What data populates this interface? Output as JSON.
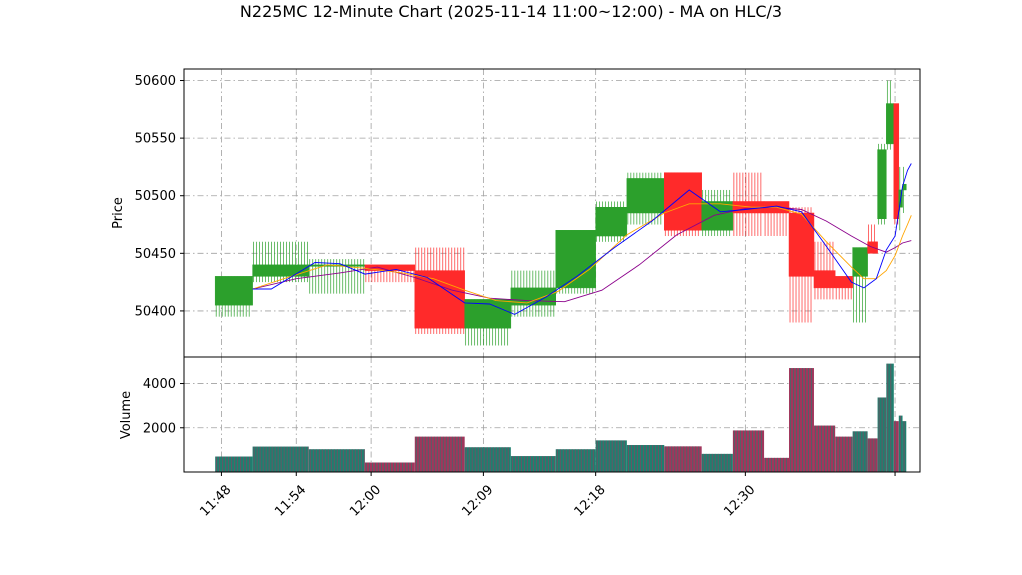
{
  "chart_data": {
    "type": "candlestick",
    "title": "N225MC 12-Minute Chart (2025-11-14 11:00~12:00) - MA on HLC/3",
    "price_panel": {
      "ylabel": "Price",
      "ylim": [
        50360,
        50610
      ],
      "yticks": [
        50400,
        50450,
        50500,
        50550,
        50600
      ],
      "grid": true
    },
    "volume_panel": {
      "ylabel": "Volume",
      "ylim": [
        0,
        5200
      ],
      "yticks": [
        2000,
        4000
      ],
      "grid": true
    },
    "x_ticks": [
      {
        "x": 0.0,
        "label": "11:48"
      },
      {
        "x": 6.0,
        "label": "11:54"
      },
      {
        "x": 12.0,
        "label": "12:00"
      },
      {
        "x": 21.0,
        "label": "12:09"
      },
      {
        "x": 30.0,
        "label": "12:18"
      },
      {
        "x": 42.0,
        "label": "12:30"
      },
      {
        "x": 54.0,
        "label": ""
      }
    ],
    "xlim": [
      -3.0,
      56.0
    ],
    "colors": {
      "up": "#2ca02c",
      "down": "#ff2a2a",
      "ma_short": "#0000ff",
      "ma_mid": "#ffa500",
      "ma_long": "#8b008b",
      "vol_up": "#1f7f6f",
      "vol_down": "#a0365c"
    },
    "candles": [
      {
        "x0": -0.5,
        "x1": 2.5,
        "open": 50405,
        "high": 50430,
        "low": 50395,
        "close": 50430,
        "volume": 700
      },
      {
        "x0": 2.5,
        "x1": 7.0,
        "open": 50430,
        "high": 50460,
        "low": 50425,
        "close": 50440,
        "volume": 1150
      },
      {
        "x0": 7.0,
        "x1": 11.5,
        "open": 50440,
        "high": 50445,
        "low": 50415,
        "close": 50440,
        "volume": 1030
      },
      {
        "x0": 11.5,
        "x1": 15.5,
        "open": 50440,
        "high": 50440,
        "low": 50425,
        "close": 50435,
        "volume": 430
      },
      {
        "x0": 15.5,
        "x1": 19.5,
        "open": 50435,
        "high": 50455,
        "low": 50380,
        "close": 50385,
        "volume": 1600
      },
      {
        "x0": 19.5,
        "x1": 23.2,
        "open": 50385,
        "high": 50410,
        "low": 50370,
        "close": 50410,
        "volume": 1120
      },
      {
        "x0": 23.2,
        "x1": 26.8,
        "open": 50405,
        "high": 50435,
        "low": 50395,
        "close": 50420,
        "volume": 720
      },
      {
        "x0": 26.8,
        "x1": 30.0,
        "open": 50420,
        "high": 50470,
        "low": 50415,
        "close": 50470,
        "volume": 1030
      },
      {
        "x0": 30.0,
        "x1": 32.5,
        "open": 50465,
        "high": 50495,
        "low": 50460,
        "close": 50490,
        "volume": 1430
      },
      {
        "x0": 32.5,
        "x1": 35.5,
        "open": 50485,
        "high": 50520,
        "low": 50475,
        "close": 50515,
        "volume": 1220
      },
      {
        "x0": 35.5,
        "x1": 38.5,
        "open": 50520,
        "high": 50520,
        "low": 50465,
        "close": 50470,
        "volume": 1160
      },
      {
        "x0": 38.5,
        "x1": 41.0,
        "open": 50470,
        "high": 50505,
        "low": 50465,
        "close": 50495,
        "volume": 820
      },
      {
        "x0": 41.0,
        "x1": 43.5,
        "open": 50495,
        "high": 50520,
        "low": 50465,
        "close": 50485,
        "volume": 1880
      },
      {
        "x0": 43.5,
        "x1": 45.5,
        "open": 50495,
        "high": 50495,
        "low": 50465,
        "close": 50485,
        "volume": 640
      },
      {
        "x0": 45.5,
        "x1": 47.5,
        "open": 50485,
        "high": 50490,
        "low": 50390,
        "close": 50430,
        "volume": 4700
      },
      {
        "x0": 47.5,
        "x1": 49.2,
        "open": 50435,
        "high": 50460,
        "low": 50410,
        "close": 50420,
        "volume": 2100
      },
      {
        "x0": 49.2,
        "x1": 50.6,
        "open": 50430,
        "high": 50430,
        "low": 50410,
        "close": 50420,
        "volume": 1600
      },
      {
        "x0": 50.6,
        "x1": 51.8,
        "open": 50430,
        "high": 50455,
        "low": 50390,
        "close": 50455,
        "volume": 1840
      },
      {
        "x0": 51.8,
        "x1": 52.6,
        "open": 50460,
        "high": 50475,
        "low": 50450,
        "close": 50450,
        "volume": 1520
      },
      {
        "x0": 52.6,
        "x1": 53.3,
        "open": 50480,
        "high": 50545,
        "low": 50475,
        "close": 50540,
        "volume": 3370
      },
      {
        "x0": 53.3,
        "x1": 53.9,
        "open": 50545,
        "high": 50600,
        "low": 50540,
        "close": 50580,
        "volume": 4900
      },
      {
        "x0": 53.9,
        "x1": 54.3,
        "open": 50580,
        "high": 50580,
        "low": 50475,
        "close": 50480,
        "volume": 2300
      },
      {
        "x0": 54.3,
        "x1": 54.6,
        "open": 50490,
        "high": 50525,
        "low": 50470,
        "close": 50505,
        "volume": 2550
      },
      {
        "x0": 54.6,
        "x1": 54.9,
        "open": 50505,
        "high": 50525,
        "low": 50485,
        "close": 50510,
        "volume": 2300
      }
    ],
    "ma_short": [
      [
        2.5,
        50419
      ],
      [
        4.0,
        50419
      ],
      [
        7.5,
        50442
      ],
      [
        9.5,
        50441
      ],
      [
        11.5,
        50432
      ],
      [
        14.0,
        50436
      ],
      [
        16.5,
        50429
      ],
      [
        19.5,
        50407
      ],
      [
        21.5,
        50406
      ],
      [
        23.5,
        50397
      ],
      [
        26.0,
        50412
      ],
      [
        28.5,
        50430
      ],
      [
        31.5,
        50455
      ],
      [
        34.5,
        50478
      ],
      [
        37.5,
        50505
      ],
      [
        40.0,
        50486
      ],
      [
        42.0,
        50488
      ],
      [
        44.5,
        50491
      ],
      [
        46.5,
        50486
      ],
      [
        48.5,
        50456
      ],
      [
        50.5,
        50425
      ],
      [
        51.5,
        50420
      ],
      [
        52.5,
        50428
      ],
      [
        53.3,
        50453
      ],
      [
        54.0,
        50465
      ],
      [
        54.6,
        50508
      ],
      [
        55.0,
        50522
      ],
      [
        55.3,
        50528
      ]
    ],
    "ma_mid": [
      [
        2.5,
        50419
      ],
      [
        5.0,
        50428
      ],
      [
        8.5,
        50440
      ],
      [
        11.5,
        50437
      ],
      [
        14.5,
        50433
      ],
      [
        17.0,
        50428
      ],
      [
        19.5,
        50418
      ],
      [
        22.0,
        50409
      ],
      [
        24.5,
        50407
      ],
      [
        27.0,
        50417
      ],
      [
        29.5,
        50436
      ],
      [
        32.5,
        50466
      ],
      [
        35.5,
        50485
      ],
      [
        37.5,
        50493
      ],
      [
        40.0,
        50493
      ],
      [
        42.5,
        50490
      ],
      [
        44.5,
        50490
      ],
      [
        46.5,
        50484
      ],
      [
        48.5,
        50460
      ],
      [
        50.5,
        50438
      ],
      [
        51.5,
        50428
      ],
      [
        52.5,
        50428
      ],
      [
        53.3,
        50435
      ],
      [
        54.0,
        50448
      ],
      [
        54.6,
        50465
      ],
      [
        55.0,
        50475
      ],
      [
        55.3,
        50483
      ]
    ],
    "ma_long": [
      [
        2.5,
        50419
      ],
      [
        6.0,
        50428
      ],
      [
        9.5,
        50433
      ],
      [
        12.5,
        50438
      ],
      [
        15.5,
        50429
      ],
      [
        18.5,
        50418
      ],
      [
        21.5,
        50411
      ],
      [
        24.5,
        50409
      ],
      [
        27.5,
        50408
      ],
      [
        30.5,
        50418
      ],
      [
        33.5,
        50440
      ],
      [
        36.5,
        50466
      ],
      [
        39.5,
        50483
      ],
      [
        42.0,
        50489
      ],
      [
        44.5,
        50490
      ],
      [
        46.5,
        50488
      ],
      [
        48.5,
        50478
      ],
      [
        50.5,
        50465
      ],
      [
        52.0,
        50456
      ],
      [
        53.3,
        50451
      ],
      [
        54.0,
        50455
      ],
      [
        54.6,
        50459
      ],
      [
        55.3,
        50461
      ]
    ]
  }
}
